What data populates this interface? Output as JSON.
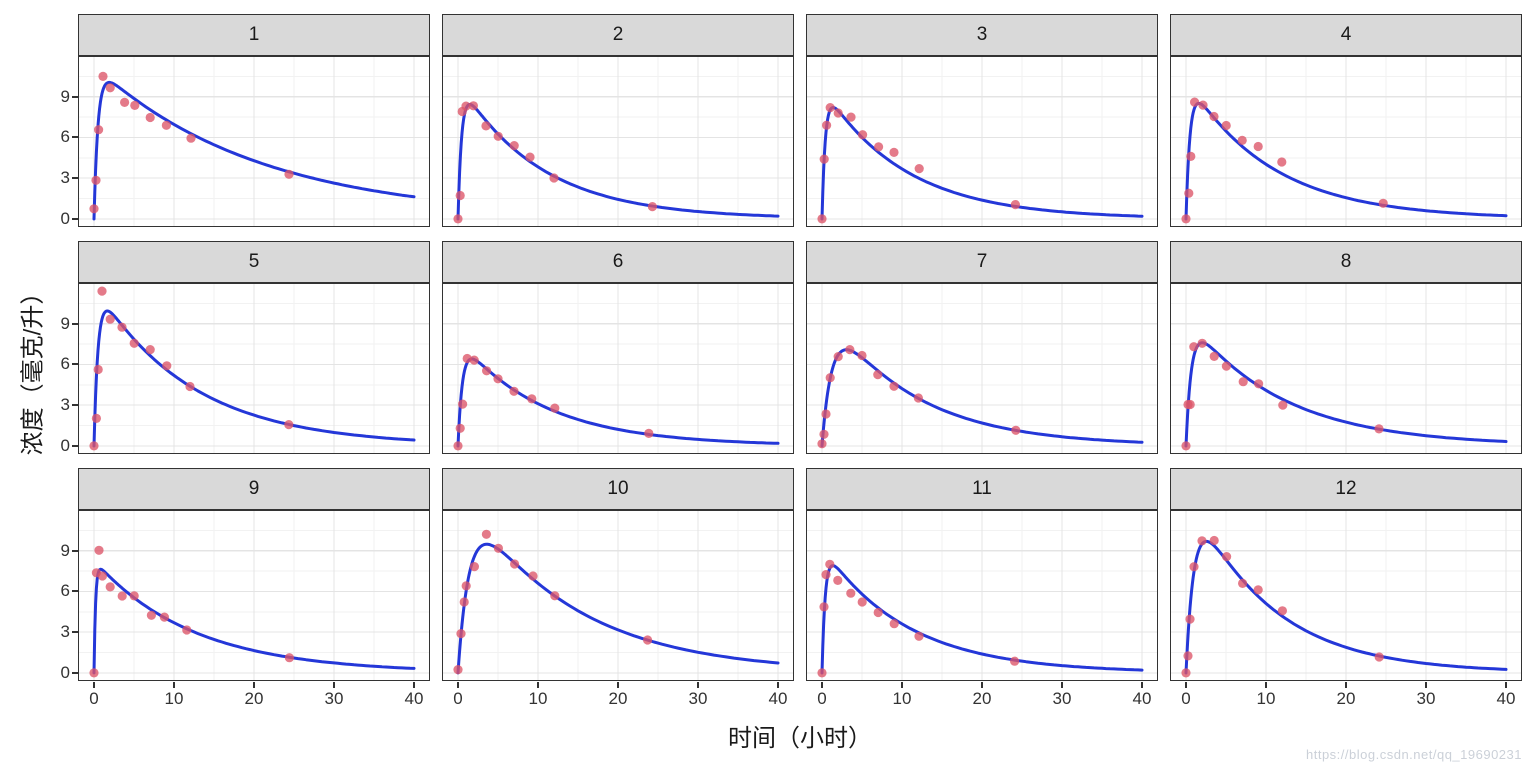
{
  "figure": {
    "x_title": "时间（小时）",
    "y_title": "浓度（毫克/升）",
    "x_ticks": [
      0,
      10,
      20,
      30,
      40
    ],
    "y_ticks": [
      0,
      3,
      6,
      9
    ],
    "x_minor": [
      5,
      15,
      25,
      35
    ],
    "y_minor": [
      1.5,
      4.5,
      7.5,
      10.5
    ],
    "x_domain": [
      -2,
      42
    ],
    "y_domain": [
      -0.6,
      12.0
    ]
  },
  "style": {
    "curve_color": "#2437d8",
    "point_color": "#dd5468",
    "point_opacity": 0.78,
    "strip_bg": "#d9d9d9",
    "border_color": "#333333",
    "grid_major": "#e4e4e4",
    "grid_minor": "#f2f2f2",
    "panel_bg": "#ffffff"
  },
  "watermark": {
    "text": "https://blog.csdn.net/qq_19690231"
  },
  "chart_data": {
    "type": "scatter",
    "note": "12 facets: observed concentration points (red) with fitted one-compartment curve C(t)=A*(exp(-ke*t)-exp(-ka*t)) (blue)",
    "xlabel": "时间（小时）",
    "ylabel": "浓度（毫克/升）",
    "xlim": [
      -2,
      42
    ],
    "ylim": [
      -0.6,
      12.0
    ],
    "facets": [
      {
        "label": "1",
        "fit": {
          "A": 11.3,
          "ka": 2.0,
          "ke": 0.0485
        },
        "points": [
          [
            0,
            0.74
          ],
          [
            0.25,
            2.84
          ],
          [
            0.57,
            6.57
          ],
          [
            1.12,
            10.5
          ],
          [
            2.02,
            9.66
          ],
          [
            3.82,
            8.58
          ],
          [
            5.1,
            8.36
          ],
          [
            7.03,
            7.47
          ],
          [
            9.05,
            6.89
          ],
          [
            12.12,
            5.94
          ],
          [
            24.37,
            3.28
          ]
        ]
      },
      {
        "label": "2",
        "fit": {
          "A": 10.2,
          "ka": 2.2,
          "ke": 0.098
        },
        "points": [
          [
            0,
            0.0
          ],
          [
            0.27,
            1.72
          ],
          [
            0.52,
            7.91
          ],
          [
            1.0,
            8.31
          ],
          [
            1.92,
            8.33
          ],
          [
            3.5,
            6.85
          ],
          [
            5.02,
            6.08
          ],
          [
            7.03,
            5.4
          ],
          [
            9.0,
            4.55
          ],
          [
            12.0,
            3.01
          ],
          [
            24.3,
            0.9
          ]
        ]
      },
      {
        "label": "3",
        "fit": {
          "A": 9.8,
          "ka": 2.4,
          "ke": 0.098
        },
        "points": [
          [
            0,
            0.0
          ],
          [
            0.27,
            4.4
          ],
          [
            0.58,
            6.9
          ],
          [
            1.02,
            8.2
          ],
          [
            2.02,
            7.8
          ],
          [
            3.62,
            7.5
          ],
          [
            5.08,
            6.2
          ],
          [
            7.07,
            5.3
          ],
          [
            9.0,
            4.9
          ],
          [
            12.15,
            3.7
          ],
          [
            24.17,
            1.05
          ]
        ]
      },
      {
        "label": "4",
        "fit": {
          "A": 10.4,
          "ka": 2.0,
          "ke": 0.095
        },
        "points": [
          [
            0,
            0.0
          ],
          [
            0.35,
            1.89
          ],
          [
            0.6,
            4.6
          ],
          [
            1.07,
            8.6
          ],
          [
            2.13,
            8.38
          ],
          [
            3.5,
            7.54
          ],
          [
            5.02,
            6.88
          ],
          [
            7.02,
            5.78
          ],
          [
            9.02,
            5.33
          ],
          [
            11.98,
            4.19
          ],
          [
            24.65,
            1.15
          ]
        ]
      },
      {
        "label": "5",
        "fit": {
          "A": 11.9,
          "ka": 2.0,
          "ke": 0.083
        },
        "points": [
          [
            0,
            0.0
          ],
          [
            0.3,
            2.02
          ],
          [
            0.52,
            5.63
          ],
          [
            1.0,
            11.4
          ],
          [
            2.02,
            9.33
          ],
          [
            3.5,
            8.74
          ],
          [
            5.02,
            7.56
          ],
          [
            7.02,
            7.09
          ],
          [
            9.1,
            5.9
          ],
          [
            12.0,
            4.37
          ],
          [
            24.35,
            1.57
          ]
        ]
      },
      {
        "label": "6",
        "fit": {
          "A": 7.95,
          "ka": 1.8,
          "ke": 0.094
        },
        "points": [
          [
            0,
            0.0
          ],
          [
            0.27,
            1.29
          ],
          [
            0.58,
            3.08
          ],
          [
            1.15,
            6.44
          ],
          [
            2.03,
            6.32
          ],
          [
            3.57,
            5.53
          ],
          [
            5.0,
            4.94
          ],
          [
            7.0,
            4.02
          ],
          [
            9.22,
            3.46
          ],
          [
            12.1,
            2.78
          ],
          [
            23.85,
            0.92
          ]
        ]
      },
      {
        "label": "7",
        "fit": {
          "A": 10.6,
          "ka": 0.8,
          "ke": 0.092
        },
        "points": [
          [
            0,
            0.15
          ],
          [
            0.25,
            0.85
          ],
          [
            0.5,
            2.35
          ],
          [
            1.02,
            5.02
          ],
          [
            2.02,
            6.58
          ],
          [
            3.48,
            7.09
          ],
          [
            5.0,
            6.66
          ],
          [
            6.98,
            5.25
          ],
          [
            9.0,
            4.39
          ],
          [
            12.05,
            3.53
          ],
          [
            24.22,
            1.15
          ]
        ]
      },
      {
        "label": "8",
        "fit": {
          "A": 9.57,
          "ka": 1.5,
          "ke": 0.085
        },
        "points": [
          [
            0,
            0.0
          ],
          [
            0.25,
            3.05
          ],
          [
            0.52,
            3.05
          ],
          [
            0.98,
            7.31
          ],
          [
            2.02,
            7.56
          ],
          [
            3.53,
            6.59
          ],
          [
            5.05,
            5.88
          ],
          [
            7.15,
            4.73
          ],
          [
            9.07,
            4.57
          ],
          [
            12.1,
            3.0
          ],
          [
            24.12,
            1.25
          ]
        ]
      },
      {
        "label": "9",
        "fit": {
          "A": 8.3,
          "ka": 5.0,
          "ke": 0.081
        },
        "points": [
          [
            0,
            0.0
          ],
          [
            0.3,
            7.37
          ],
          [
            0.63,
            9.03
          ],
          [
            1.05,
            7.14
          ],
          [
            2.02,
            6.33
          ],
          [
            3.53,
            5.66
          ],
          [
            5.02,
            5.67
          ],
          [
            7.17,
            4.24
          ],
          [
            8.8,
            4.11
          ],
          [
            11.6,
            3.16
          ],
          [
            24.43,
            1.12
          ]
        ]
      },
      {
        "label": "10",
        "fit": {
          "A": 13.8,
          "ka": 0.7,
          "ke": 0.0736
        },
        "points": [
          [
            0,
            0.24
          ],
          [
            0.37,
            2.89
          ],
          [
            0.77,
            5.22
          ],
          [
            1.02,
            6.41
          ],
          [
            2.05,
            7.83
          ],
          [
            3.55,
            10.21
          ],
          [
            5.05,
            9.18
          ],
          [
            7.08,
            8.02
          ],
          [
            9.38,
            7.14
          ],
          [
            12.1,
            5.68
          ],
          [
            23.7,
            2.42
          ]
        ]
      },
      {
        "label": "11",
        "fit": {
          "A": 9.35,
          "ka": 2.5,
          "ke": 0.0953
        },
        "points": [
          [
            0,
            0.0
          ],
          [
            0.25,
            4.86
          ],
          [
            0.5,
            7.24
          ],
          [
            0.98,
            8.0
          ],
          [
            1.98,
            6.81
          ],
          [
            3.6,
            5.87
          ],
          [
            5.02,
            5.22
          ],
          [
            7.03,
            4.45
          ],
          [
            9.03,
            3.62
          ],
          [
            12.12,
            2.69
          ],
          [
            24.08,
            0.86
          ]
        ]
      },
      {
        "label": "12",
        "fit": {
          "A": 13.9,
          "ka": 1.0,
          "ke": 0.1
        },
        "points": [
          [
            0,
            0.0
          ],
          [
            0.25,
            1.25
          ],
          [
            0.5,
            3.96
          ],
          [
            1.0,
            7.82
          ],
          [
            2.0,
            9.72
          ],
          [
            3.52,
            9.75
          ],
          [
            5.07,
            8.57
          ],
          [
            7.07,
            6.59
          ],
          [
            9.03,
            6.11
          ],
          [
            12.05,
            4.57
          ],
          [
            24.15,
            1.17
          ]
        ]
      }
    ]
  }
}
